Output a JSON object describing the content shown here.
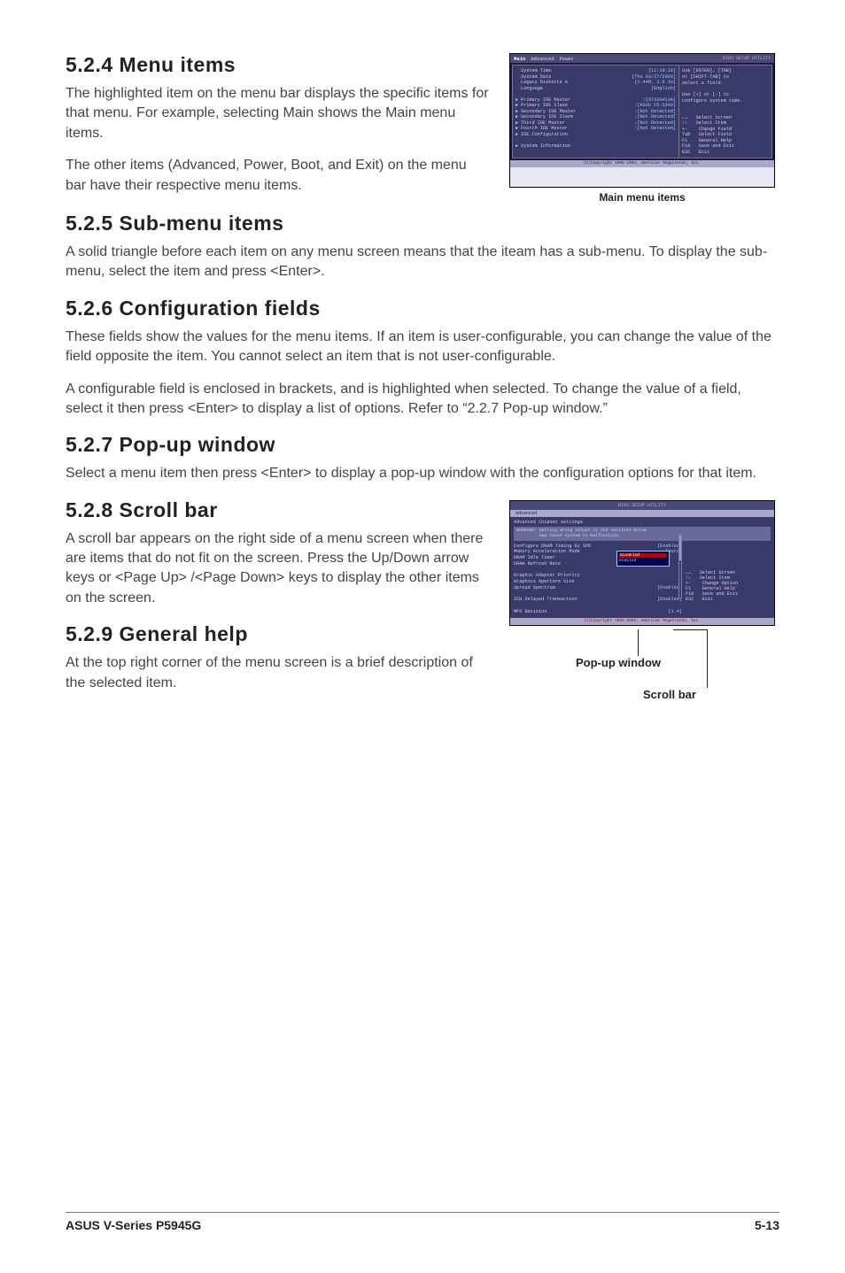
{
  "sections": {
    "s524": {
      "title": "5.2.4   Menu items",
      "p1": "The highlighted item on the menu bar displays the specific items for that menu. For example, selecting Main shows the Main menu items.",
      "p2": "The other items (Advanced, Power, Boot, and Exit) on the menu bar have their respective menu items."
    },
    "s525": {
      "title": "5.2.5   Sub-menu items",
      "p1": "A solid triangle before each item on any menu screen means that the iteam has a sub-menu. To display the sub-menu, select the item and press <Enter>."
    },
    "s526": {
      "title": "5.2.6   Configuration fields",
      "p1": "These fields show the values for the menu items. If an item is user-configurable, you can change the value of the field opposite the item. You cannot select an item that is not user-configurable.",
      "p2": "A configurable field is enclosed in brackets, and is highlighted when selected. To change the value of a field, select it then press <Enter> to display a list of options. Refer to “2.2.7 Pop-up window.”"
    },
    "s527": {
      "title": "5.2.7   Pop-up window",
      "p1": "Select a menu item then press <Enter> to display a pop-up window with the configuration options for that item."
    },
    "s528": {
      "title": "5.2.8   Scroll bar",
      "p1": "A scroll bar appears on the right side of a menu screen when there are items that do not fit on the screen. Press the Up/Down arrow keys or <Page Up> /<Page Down> keys to display the other items on the screen."
    },
    "s529": {
      "title": "5.2.9   General help",
      "p1": "At the top right corner of the menu screen is a brief description of the selected item."
    }
  },
  "captions": {
    "main_menu_items": "Main menu items",
    "popup_window": "Pop-up window",
    "scroll_bar": "Scroll bar"
  },
  "bios1": {
    "title_bar": "BIOS SETUP UTILITY",
    "menu": [
      "Main",
      "Advanced",
      "Power"
    ],
    "rows": [
      {
        "tri": " ",
        "lab": "System Time",
        "val": "[11:10:19]"
      },
      {
        "tri": " ",
        "lab": "System Date",
        "val": "[Thu 03/27/2003]"
      },
      {
        "tri": " ",
        "lab": "Legacy Diskette A",
        "val": "[1.44M, 3.5 in]"
      },
      {
        "tri": " ",
        "lab": "Language",
        "val": "[English]"
      },
      {
        "tri": " ",
        "lab": " ",
        "val": " "
      },
      {
        "tri": "▶",
        "lab": "Primary IDE Master",
        "val": ":[ST320413A]"
      },
      {
        "tri": "▶",
        "lab": "Primary IDE Slave",
        "val": ":[ASUS CD-S340]"
      },
      {
        "tri": "▶",
        "lab": "Secondary IDE Master",
        "val": ":[Not Detected]"
      },
      {
        "tri": "▶",
        "lab": "Secondary IDE Slave",
        "val": ":[Not Detected]"
      },
      {
        "tri": "▶",
        "lab": "Third IDE Master",
        "val": ":[Not Detected]"
      },
      {
        "tri": "▶",
        "lab": "Fourth IDE Master",
        "val": ":[Not Detected]"
      },
      {
        "tri": "▶",
        "lab": "IDE Configuration",
        "val": " "
      },
      {
        "tri": " ",
        "lab": " ",
        "val": " "
      },
      {
        "tri": "▶",
        "lab": "System Information",
        "val": " "
      }
    ],
    "help": [
      "Use [ENTER], [TAB]",
      "or [SHIFT-TAB] to",
      "select a field.",
      "",
      "Use [+] or [-] to",
      "configure system time."
    ],
    "keys": [
      "←→   Select Screen",
      "↑↓   Select Item",
      "+-    Change Field",
      "Tab   Select Field",
      "F1    General Help",
      "F10   Save and Exit",
      "ESC   Exit"
    ],
    "footer": "(C)Copyright 1985-2002, American Megatrends, Inc."
  },
  "bios2": {
    "title_bar": "BIOS SETUP UTILITY",
    "menubar": "Advanced",
    "heading": "Advanced Chipset settings",
    "warning": "WARNING: Setting wrong values in the sections below\n         may cause system to malfunction.",
    "rows": [
      {
        "lab": "Configure DRAM Timing by SPD",
        "val": "[Enabled]"
      },
      {
        "lab": "Memory Acceleration Mode",
        "val": "[Auto]"
      },
      {
        "lab": "DRAM Idle Timer",
        "val": " "
      },
      {
        "lab": "DRAm Refresh Rate",
        "val": " "
      },
      {
        "lab": " ",
        "val": " "
      },
      {
        "lab": "Graphic Adapter Priority",
        "val": " "
      },
      {
        "lab": "Graphics Aperture Size",
        "val": " "
      },
      {
        "lab": "Spread Spectrum",
        "val": "[Enabled]"
      },
      {
        "lab": " ",
        "val": " "
      },
      {
        "lab": "ICH Delayed Transaction",
        "val": "[Enabled]"
      },
      {
        "lab": " ",
        "val": " "
      },
      {
        "lab": "MPS Revision",
        "val": "[1.4]"
      }
    ],
    "popup": {
      "title": "Disabled",
      "items": [
        "Disabled",
        "Enabled"
      ]
    },
    "keys": [
      "←→   Select Screen",
      "↑↓   Select Item",
      "+-    Change Option",
      "F1    General Help",
      "F10   Save and Exit",
      "ESC   Exit"
    ],
    "footer": "(C)Copyright 1985-2002, American Megatrends, Inc."
  },
  "footer": {
    "left": "ASUS V-Series P5945G",
    "right": "5-13"
  },
  "colors": {
    "bios_bg": "#3a3a6a",
    "bios_bar": "#4a4a7a",
    "bios_text": "#cfcfe8",
    "bios_value": "#99ccff",
    "popup_border": "#99ccff",
    "popup_title_bg": "#c00000"
  }
}
